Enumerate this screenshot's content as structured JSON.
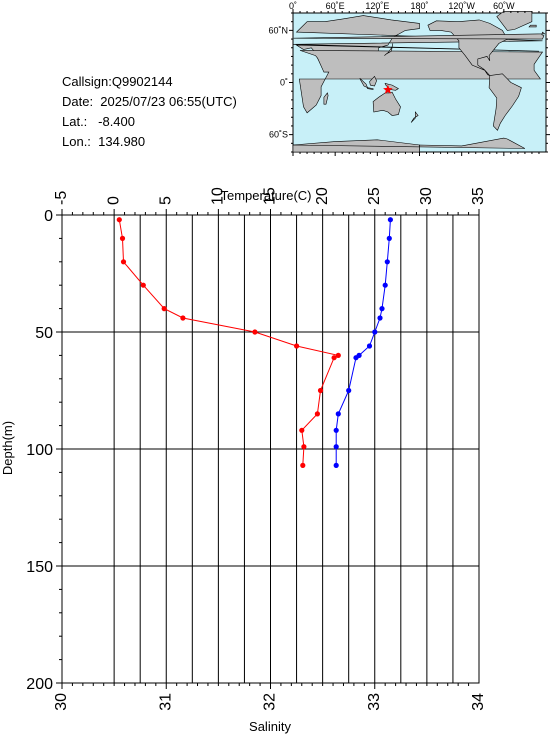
{
  "info": {
    "callsign": "Callsign:Q9902144",
    "date": "Date:  2025/07/23 06:55(UTC)",
    "lat": "Lat.:   -8.400",
    "lon": "Lon.:  134.980"
  },
  "map": {
    "lon_labels": [
      "0˚",
      "60˚E",
      "120˚E",
      "180˚",
      "120˚W",
      "60˚W"
    ],
    "lat_labels": [
      "60˚N",
      "0˚",
      "60˚S"
    ],
    "marker": {
      "lon": 134.98,
      "lat": -8.4
    },
    "colors": {
      "ocean": "#c8f0f8",
      "land": "#bebebe",
      "marker": "#ff0000"
    }
  },
  "chart_data": {
    "type": "line",
    "top_axis": {
      "label": "Temperature(C)",
      "range": [
        -5,
        35
      ],
      "ticks": [
        "-5",
        "0",
        "5",
        "10",
        "15",
        "20",
        "25",
        "30",
        "35"
      ]
    },
    "bottom_axis": {
      "label": "Salinity",
      "range": [
        30,
        34
      ],
      "ticks": [
        "30",
        "31",
        "32",
        "33",
        "34"
      ]
    },
    "y_axis": {
      "label": "Depth(m)",
      "range": [
        0,
        200
      ],
      "inverted": true,
      "ticks": [
        "0",
        "50",
        "100",
        "150",
        "200"
      ]
    },
    "grid": true,
    "series": [
      {
        "color": "#ff0000",
        "axis": "temperature",
        "points": [
          [
            0.5,
            2
          ],
          [
            0.8,
            10
          ],
          [
            0.9,
            20
          ],
          [
            2.8,
            30
          ],
          [
            4.8,
            40
          ],
          [
            6.6,
            44
          ],
          [
            13.5,
            50
          ],
          [
            17.5,
            56
          ],
          [
            21.5,
            60
          ],
          [
            21.1,
            61
          ],
          [
            19.8,
            75
          ],
          [
            19.5,
            85
          ],
          [
            18,
            92
          ],
          [
            18.2,
            99
          ],
          [
            18.1,
            107
          ]
        ]
      },
      {
        "color": "#0000ff",
        "axis": "salinity",
        "points": [
          [
            33.15,
            2
          ],
          [
            33.14,
            10
          ],
          [
            33.12,
            20
          ],
          [
            33.1,
            30
          ],
          [
            33.07,
            40
          ],
          [
            33.05,
            44
          ],
          [
            33,
            50
          ],
          [
            32.95,
            56
          ],
          [
            32.85,
            60
          ],
          [
            32.82,
            61
          ],
          [
            32.75,
            75
          ],
          [
            32.65,
            85
          ],
          [
            32.63,
            92
          ],
          [
            32.63,
            99
          ],
          [
            32.63,
            107
          ]
        ]
      }
    ]
  }
}
